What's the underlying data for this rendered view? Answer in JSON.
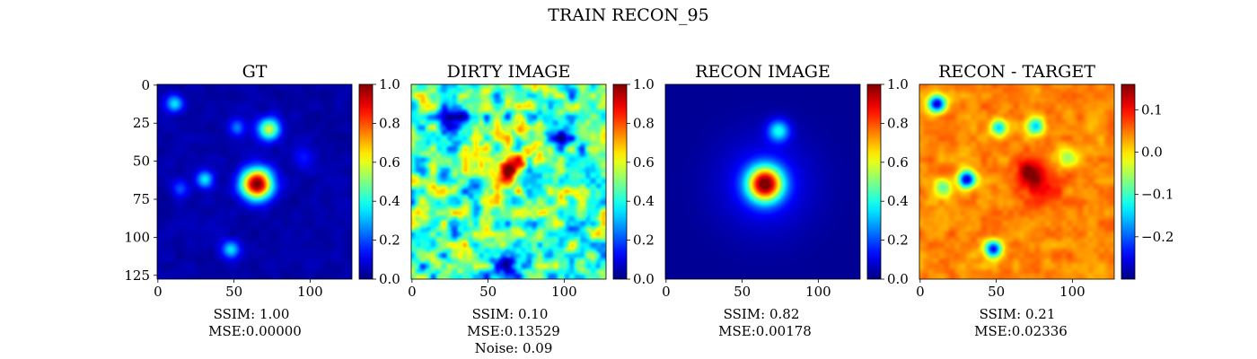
{
  "figure_title": "TRAIN RECON_95",
  "colormap": "jet",
  "chart_data": [
    {
      "type": "heatmap",
      "title": "GT",
      "x_ticks": [
        "0",
        "50",
        "100"
      ],
      "y_ticks": [
        "0",
        "25",
        "50",
        "75",
        "100",
        "125"
      ],
      "image_size": [
        128,
        128
      ],
      "clim": [
        0,
        1
      ],
      "colorbar_ticks": [
        "0.0",
        "0.2",
        "0.4",
        "0.6",
        "0.8",
        "1.0"
      ],
      "caption_lines": [
        "SSIM: 1.00",
        "MSE:0.00000"
      ],
      "base": 0.04,
      "noise": 0.02,
      "blobs": [
        {
          "x": 65,
          "y": 65,
          "s": 7,
          "a": 1.0
        },
        {
          "x": 73,
          "y": 29,
          "s": 5,
          "a": 0.55
        },
        {
          "x": 11,
          "y": 12,
          "s": 4,
          "a": 0.32
        },
        {
          "x": 31,
          "y": 62,
          "s": 4,
          "a": 0.32
        },
        {
          "x": 48,
          "y": 108,
          "s": 4,
          "a": 0.3
        },
        {
          "x": 52,
          "y": 28,
          "s": 4,
          "a": 0.2
        },
        {
          "x": 15,
          "y": 68,
          "s": 4,
          "a": 0.15
        },
        {
          "x": 96,
          "y": 48,
          "s": 5,
          "a": 0.12
        }
      ]
    },
    {
      "type": "heatmap",
      "title": "DIRTY IMAGE",
      "x_ticks": [
        "0",
        "50",
        "100"
      ],
      "y_ticks": [],
      "image_size": [
        128,
        128
      ],
      "clim": [
        0,
        1
      ],
      "colorbar_ticks": [
        "0.0",
        "0.2",
        "0.4",
        "0.6",
        "0.8",
        "1.0"
      ],
      "caption_lines": [
        "SSIM: 0.10",
        "MSE:0.13529",
        "Noise: 0.09"
      ],
      "base": 0.45,
      "noise": 0.2,
      "blobs": [
        {
          "x": 62,
          "y": 58,
          "s": 5,
          "a": 0.4
        },
        {
          "x": 70,
          "y": 50,
          "s": 5,
          "a": 0.4
        },
        {
          "x": 72,
          "y": 29,
          "s": 4,
          "a": 0.4
        },
        {
          "x": 20,
          "y": 70,
          "s": 4,
          "a": 0.3
        },
        {
          "x": 27,
          "y": 20,
          "s": 6,
          "a": -0.35
        },
        {
          "x": 100,
          "y": 35,
          "s": 6,
          "a": -0.3
        },
        {
          "x": 60,
          "y": 118,
          "s": 6,
          "a": -0.3
        }
      ]
    },
    {
      "type": "heatmap",
      "title": "RECON IMAGE",
      "x_ticks": [
        "0",
        "50",
        "100"
      ],
      "y_ticks": [],
      "image_size": [
        128,
        128
      ],
      "clim": [
        0,
        1
      ],
      "colorbar_ticks": [
        "0.0",
        "0.2",
        "0.4",
        "0.6",
        "0.8",
        "1.0"
      ],
      "caption_lines": [
        "SSIM: 0.82",
        "MSE:0.00178"
      ],
      "base": 0.02,
      "noise": 0.0,
      "blobs": [
        {
          "x": 65,
          "y": 65,
          "s": 8,
          "a": 0.92
        },
        {
          "x": 65,
          "y": 65,
          "s": 22,
          "a": 0.12
        },
        {
          "x": 74,
          "y": 30,
          "s": 5,
          "a": 0.35
        }
      ]
    },
    {
      "type": "heatmap",
      "title": "RECON - TARGET",
      "x_ticks": [
        "0",
        "50",
        "100"
      ],
      "y_ticks": [],
      "image_size": [
        128,
        128
      ],
      "clim": [
        -0.3,
        0.16
      ],
      "colorbar_ticks": [
        "−0.2",
        "−0.1",
        "0.0",
        "0.1"
      ],
      "colorbar_tick_values": [
        -0.2,
        -0.1,
        0.0,
        0.1
      ],
      "caption_lines": [
        "SSIM: 0.21",
        "MSE:0.02336"
      ],
      "base": 0.04,
      "noise": 0.02,
      "blobs": [
        {
          "x": 72,
          "y": 58,
          "s": 7,
          "a": 0.1
        },
        {
          "x": 80,
          "y": 66,
          "s": 10,
          "a": 0.05
        },
        {
          "x": 11,
          "y": 12,
          "s": 4,
          "a": -0.3
        },
        {
          "x": 31,
          "y": 62,
          "s": 4,
          "a": -0.3
        },
        {
          "x": 48,
          "y": 108,
          "s": 4,
          "a": -0.28
        },
        {
          "x": 52,
          "y": 28,
          "s": 4,
          "a": -0.18
        },
        {
          "x": 76,
          "y": 27,
          "s": 4,
          "a": -0.2
        },
        {
          "x": 15,
          "y": 68,
          "s": 4,
          "a": -0.12
        },
        {
          "x": 96,
          "y": 48,
          "s": 5,
          "a": -0.1
        }
      ]
    }
  ]
}
